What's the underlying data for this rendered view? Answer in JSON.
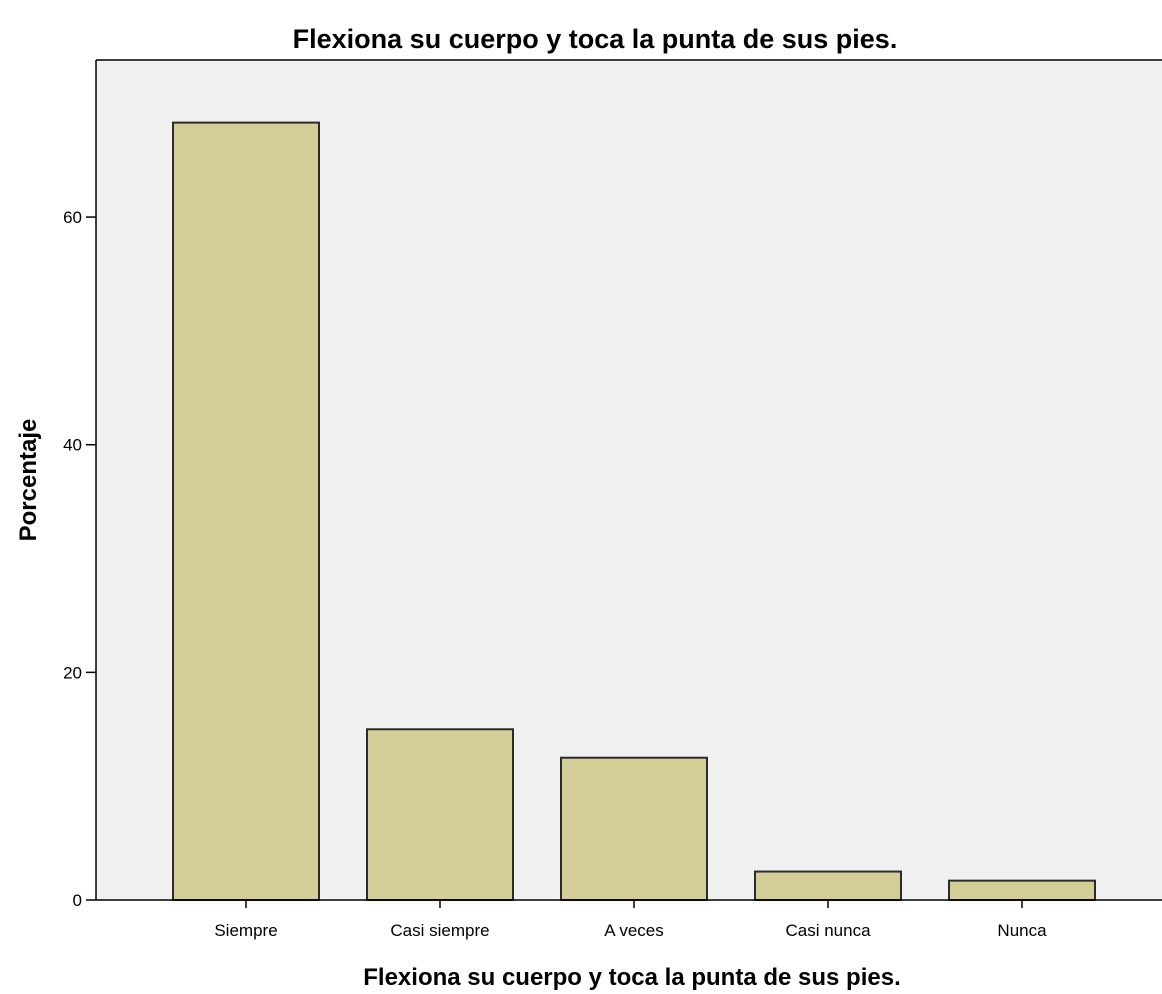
{
  "chart_data": {
    "type": "bar",
    "title": "Flexiona su cuerpo y toca la punta de sus pies.",
    "xlabel": "Flexiona su cuerpo y toca la punta de sus pies.",
    "ylabel": "Porcentaje",
    "categories": [
      "Siempre",
      "Casi siempre",
      "A veces",
      "Casi nunca",
      "Nunca"
    ],
    "values": [
      68.3,
      15.0,
      12.5,
      2.5,
      1.7
    ],
    "ylim": [
      0,
      73.8
    ],
    "yticks": [
      0,
      20,
      40,
      60
    ],
    "grid": false,
    "legend": "none",
    "colors": {
      "bar_fill": "#d3ce97",
      "bar_stroke": "#2b2b2b",
      "plot_background": "#f0f0f0",
      "axis": "#000000"
    }
  }
}
